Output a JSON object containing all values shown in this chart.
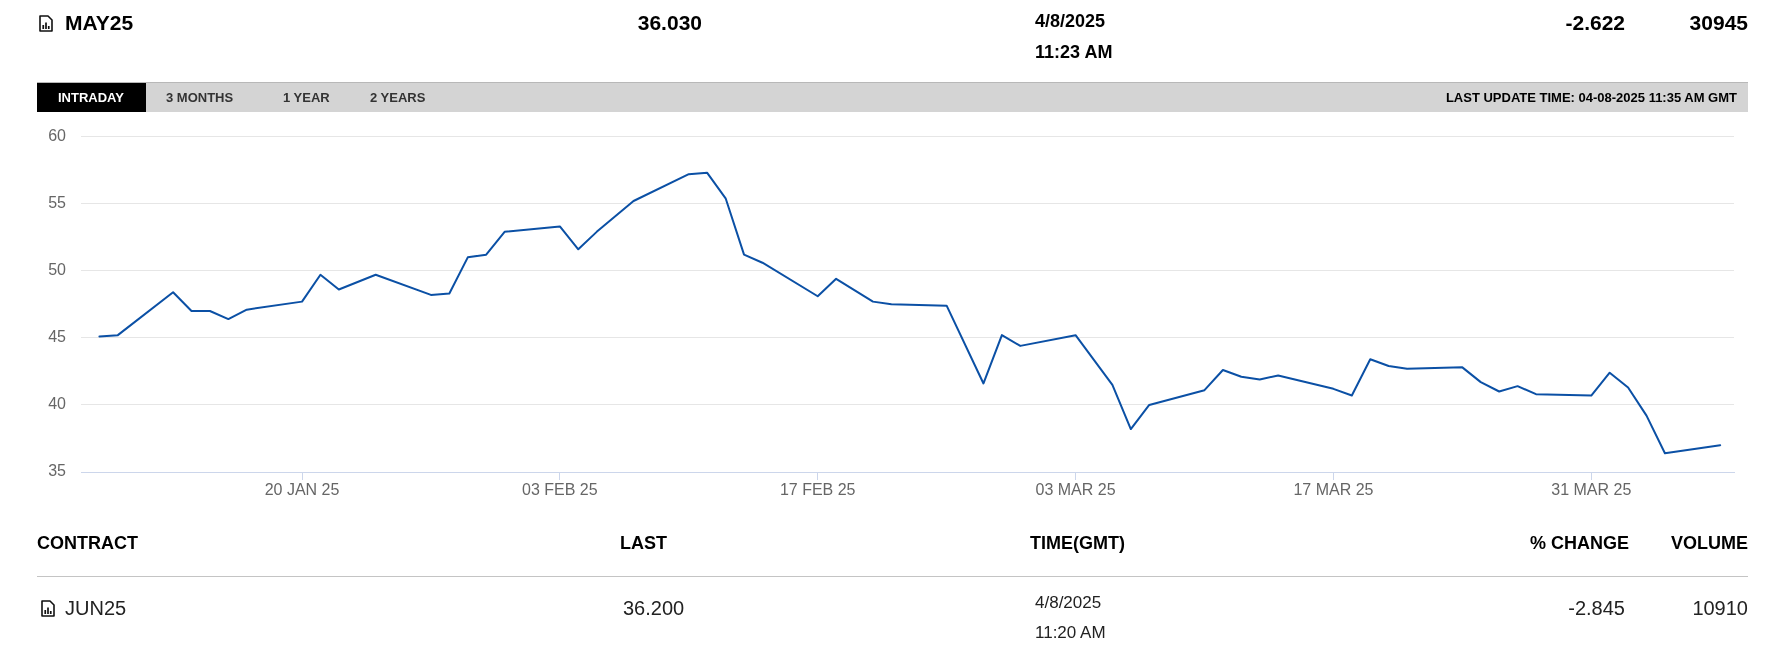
{
  "chart_data": [
    {
      "type": "other",
      "annotations": [
        "MAY25",
        "36.030",
        "4/8/2025",
        "11:23 AM",
        "-2.622",
        "30945",
        "INTRADAY",
        "3 MONTHS",
        "1 YEAR",
        "2 YEARS",
        "LAST UPDATE TIME: 04-08-2025 11:35 AM GMT"
      ]
    },
    {
      "type": "line",
      "color": "#0b50a5",
      "grid": "y",
      "x": [
        "2025-01-09",
        "2025-01-10",
        "2025-01-13",
        "2025-01-14",
        "2025-01-15",
        "2025-01-16",
        "2025-01-17",
        "2025-01-20",
        "2025-01-21",
        "2025-01-22",
        "2025-01-24",
        "2025-01-27",
        "2025-01-28",
        "2025-01-29",
        "2025-01-30",
        "2025-01-31",
        "2025-02-03",
        "2025-02-04",
        "2025-02-05",
        "2025-02-07",
        "2025-02-10",
        "2025-02-11",
        "2025-02-12",
        "2025-02-13",
        "2025-02-14",
        "2025-02-17",
        "2025-02-18",
        "2025-02-20",
        "2025-02-21",
        "2025-02-24",
        "2025-02-26",
        "2025-02-27",
        "2025-02-28",
        "2025-03-03",
        "2025-03-05",
        "2025-03-06",
        "2025-03-07",
        "2025-03-10",
        "2025-03-11",
        "2025-03-12",
        "2025-03-13",
        "2025-03-14",
        "2025-03-17",
        "2025-03-18",
        "2025-03-19",
        "2025-03-20",
        "2025-03-21",
        "2025-03-24",
        "2025-03-25",
        "2025-03-26",
        "2025-03-27",
        "2025-03-28",
        "2025-03-31",
        "2025-04-01",
        "2025-04-02",
        "2025-04-03",
        "2025-04-04",
        "2025-04-07"
      ],
      "values": [
        45.1,
        45.2,
        48.4,
        47.0,
        47.0,
        46.4,
        47.1,
        47.7,
        49.7,
        48.6,
        49.7,
        48.2,
        48.3,
        51.0,
        51.2,
        52.9,
        53.3,
        51.6,
        52.9,
        55.2,
        57.2,
        57.3,
        55.4,
        51.2,
        50.6,
        48.1,
        49.4,
        47.7,
        47.5,
        47.4,
        41.6,
        45.2,
        44.4,
        45.2,
        41.5,
        38.2,
        40.0,
        41.1,
        42.6,
        42.1,
        41.9,
        42.2,
        41.2,
        40.7,
        43.4,
        42.9,
        42.7,
        42.8,
        41.7,
        41.0,
        41.4,
        40.8,
        40.7,
        42.4,
        41.3,
        39.2,
        36.4,
        37.0
      ],
      "xlim": [
        "2025-01-08",
        "2025-04-07T18:00"
      ],
      "xticks": [
        {
          "value": "2025-01-20",
          "label": "20 JAN 25"
        },
        {
          "value": "2025-02-03",
          "label": "03 FEB 25"
        },
        {
          "value": "2025-02-17",
          "label": "17 FEB 25"
        },
        {
          "value": "2025-03-03",
          "label": "03 MAR 25"
        },
        {
          "value": "2025-03-17",
          "label": "17 MAR 25"
        },
        {
          "value": "2025-03-31",
          "label": "31 MAR 25"
        }
      ],
      "ylim": [
        35,
        60
      ],
      "yticks": [
        35,
        40,
        45,
        50,
        55,
        60
      ]
    },
    {
      "type": "other",
      "annotations": [
        "CONTRACT",
        "LAST",
        "TIME(GMT)",
        "% CHANGE",
        "VOLUME",
        "JUN25",
        "36.200",
        "4/8/2025",
        "11:20 AM",
        "-2.845",
        "10910"
      ]
    }
  ]
}
